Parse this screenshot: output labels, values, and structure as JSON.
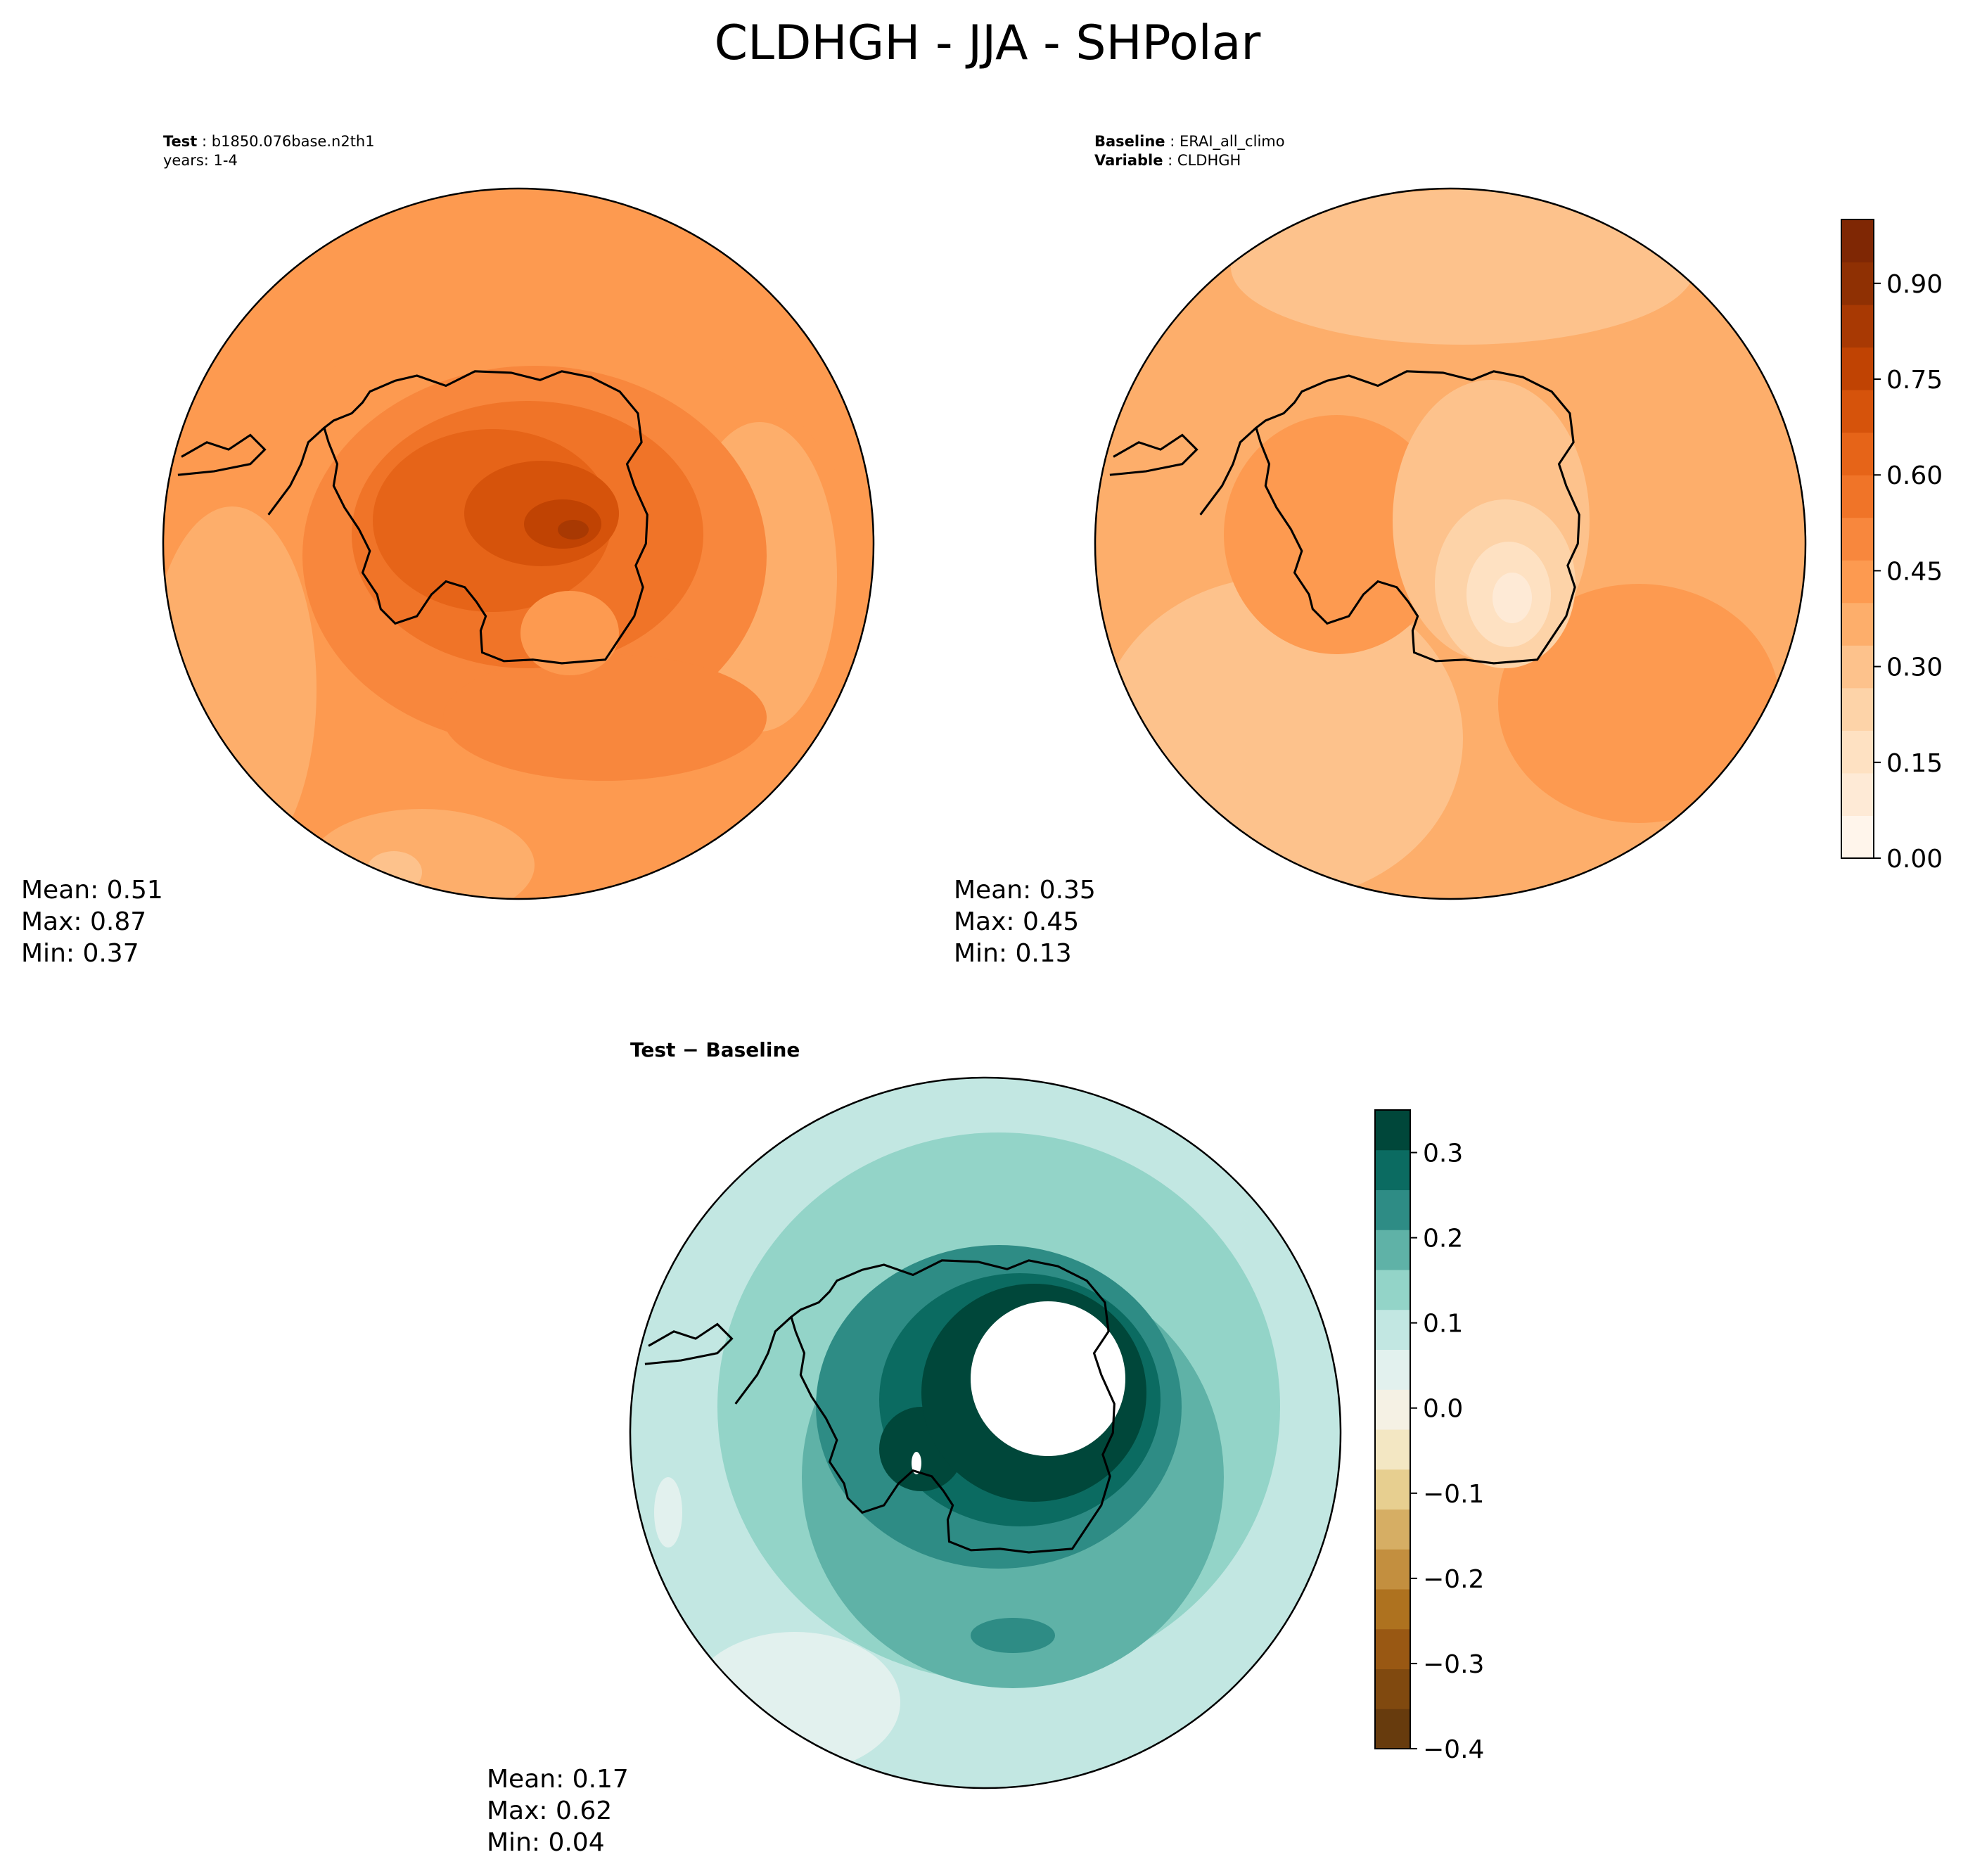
{
  "title": "CLDHGH - JJA - SHPolar",
  "panels": {
    "test": {
      "label": "Test",
      "case": "b1850.076base.n2th1",
      "years": "years: 1-4",
      "stats": {
        "mean": "Mean:  0.51",
        "max": "Max:  0.87",
        "min": "Min:  0.37"
      }
    },
    "baseline": {
      "label": "Baseline",
      "case": "ERAI_all_climo",
      "variable_label": "Variable",
      "variable": "CLDHGH",
      "stats": {
        "mean": "Mean:  0.35",
        "max": "Max:  0.45",
        "min": "Min:  0.13"
      }
    },
    "diff": {
      "title": "Test − Baseline",
      "stats": {
        "mean": "Mean:  0.17",
        "max": "Max:  0.62",
        "min": "Min:  0.04"
      }
    }
  },
  "chart_data": [
    {
      "type": "heatmap",
      "name": "Test",
      "projection": "south-polar-stereographic",
      "mean": 0.51,
      "max": 0.87,
      "min": 0.37,
      "colormap": "Oranges",
      "colorbar": {
        "ticks": [
          "0.00",
          "0.15",
          "0.30",
          "0.45",
          "0.60",
          "0.75",
          "0.90"
        ],
        "tick_values": [
          0.0,
          0.15,
          0.3,
          0.45,
          0.6,
          0.75,
          0.9
        ],
        "range": [
          0.0,
          1.0
        ]
      }
    },
    {
      "type": "heatmap",
      "name": "Baseline",
      "projection": "south-polar-stereographic",
      "mean": 0.35,
      "max": 0.45,
      "min": 0.13,
      "colormap": "Oranges",
      "colorbar": {
        "ticks": [
          "0.00",
          "0.15",
          "0.30",
          "0.45",
          "0.60",
          "0.75",
          "0.90"
        ],
        "tick_values": [
          0.0,
          0.15,
          0.3,
          0.45,
          0.6,
          0.75,
          0.9
        ],
        "range": [
          0.0,
          1.0
        ]
      }
    },
    {
      "type": "heatmap",
      "name": "Test - Baseline",
      "projection": "south-polar-stereographic",
      "mean": 0.17,
      "max": 0.62,
      "min": 0.04,
      "colormap": "BrBG",
      "colorbar": {
        "ticks": [
          "0.3",
          "0.2",
          "0.1",
          "0.0",
          "−0.1",
          "−0.2",
          "−0.3",
          "−0.4"
        ],
        "tick_values": [
          0.3,
          0.2,
          0.1,
          0.0,
          -0.1,
          -0.2,
          -0.3,
          -0.4
        ],
        "range": [
          -0.4,
          0.35
        ]
      }
    }
  ],
  "colors": {
    "oranges": [
      "#fff5eb",
      "#feead6",
      "#fee1c2",
      "#fdd3a8",
      "#fdc28c",
      "#fdae6b",
      "#fd9a50",
      "#f8873d",
      "#f07428",
      "#e66418",
      "#d6530b",
      "#c04303",
      "#a83903",
      "#8f3003",
      "#7f2704"
    ],
    "brbg": [
      "#673b0d",
      "#80490f",
      "#995813",
      "#ae721f",
      "#c38f3f",
      "#d6ae64",
      "#e7cf90",
      "#f3e7c3",
      "#f5f1e4",
      "#e2f1ee",
      "#c2e7e2",
      "#93d4c8",
      "#5fb2a7",
      "#2e8c85",
      "#0b6b61",
      "#00473a"
    ]
  }
}
